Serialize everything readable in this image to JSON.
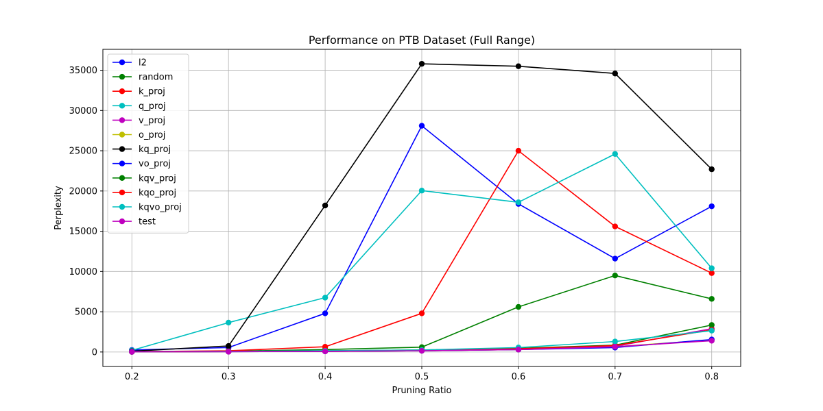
{
  "chart_data": {
    "type": "line",
    "title": "Performance on PTB Dataset (Full Range)",
    "xlabel": "Pruning Ratio",
    "ylabel": "Perplexity",
    "x": [
      0.2,
      0.3,
      0.4,
      0.5,
      0.6,
      0.7,
      0.8
    ],
    "xticks": [
      "0.2",
      "0.3",
      "0.4",
      "0.5",
      "0.6",
      "0.7",
      "0.8"
    ],
    "yticks": [
      "0",
      "5000",
      "10000",
      "15000",
      "20000",
      "25000",
      "30000",
      "35000"
    ],
    "ytick_values": [
      0,
      5000,
      10000,
      15000,
      20000,
      25000,
      30000,
      35000
    ],
    "xlim": [
      0.17,
      0.83
    ],
    "ylim": [
      -1800,
      37600
    ],
    "grid": true,
    "legend_position": "top-left",
    "series": [
      {
        "name": "l2",
        "color": "#0000ff",
        "values": [
          250,
          550,
          4800,
          28100,
          18400,
          11600,
          18100
        ]
      },
      {
        "name": "random",
        "color": "#008000",
        "values": [
          60,
          100,
          300,
          600,
          5600,
          9500,
          6600
        ]
      },
      {
        "name": "k_proj",
        "color": "#ff0000",
        "values": [
          50,
          150,
          650,
          4800,
          25000,
          15600,
          9800
        ]
      },
      {
        "name": "q_proj",
        "color": "#00bfbf",
        "values": [
          200,
          3650,
          6750,
          20050,
          18600,
          24600,
          10400
        ]
      },
      {
        "name": "v_proj",
        "color": "#bf00bf",
        "values": [
          20,
          40,
          80,
          150,
          300,
          700,
          2900
        ]
      },
      {
        "name": "o_proj",
        "color": "#bfbf00",
        "values": [
          20,
          40,
          80,
          150,
          300,
          650,
          1500
        ]
      },
      {
        "name": "kq_proj",
        "color": "#000000",
        "values": [
          100,
          750,
          18200,
          35800,
          35500,
          34600,
          22700
        ]
      },
      {
        "name": "vo_proj",
        "color": "#0000ff",
        "values": [
          20,
          40,
          80,
          150,
          300,
          550,
          1550
        ]
      },
      {
        "name": "kqv_proj",
        "color": "#008000",
        "values": [
          30,
          60,
          150,
          250,
          450,
          850,
          3350
        ]
      },
      {
        "name": "kqo_proj",
        "color": "#ff0000",
        "values": [
          30,
          60,
          120,
          200,
          400,
          800,
          2750
        ]
      },
      {
        "name": "kqvo_proj",
        "color": "#00bfbf",
        "values": [
          30,
          80,
          150,
          250,
          550,
          1300,
          2650
        ]
      },
      {
        "name": "test",
        "color": "#bf00bf",
        "values": [
          20,
          40,
          80,
          150,
          300,
          650,
          1400
        ]
      }
    ]
  }
}
